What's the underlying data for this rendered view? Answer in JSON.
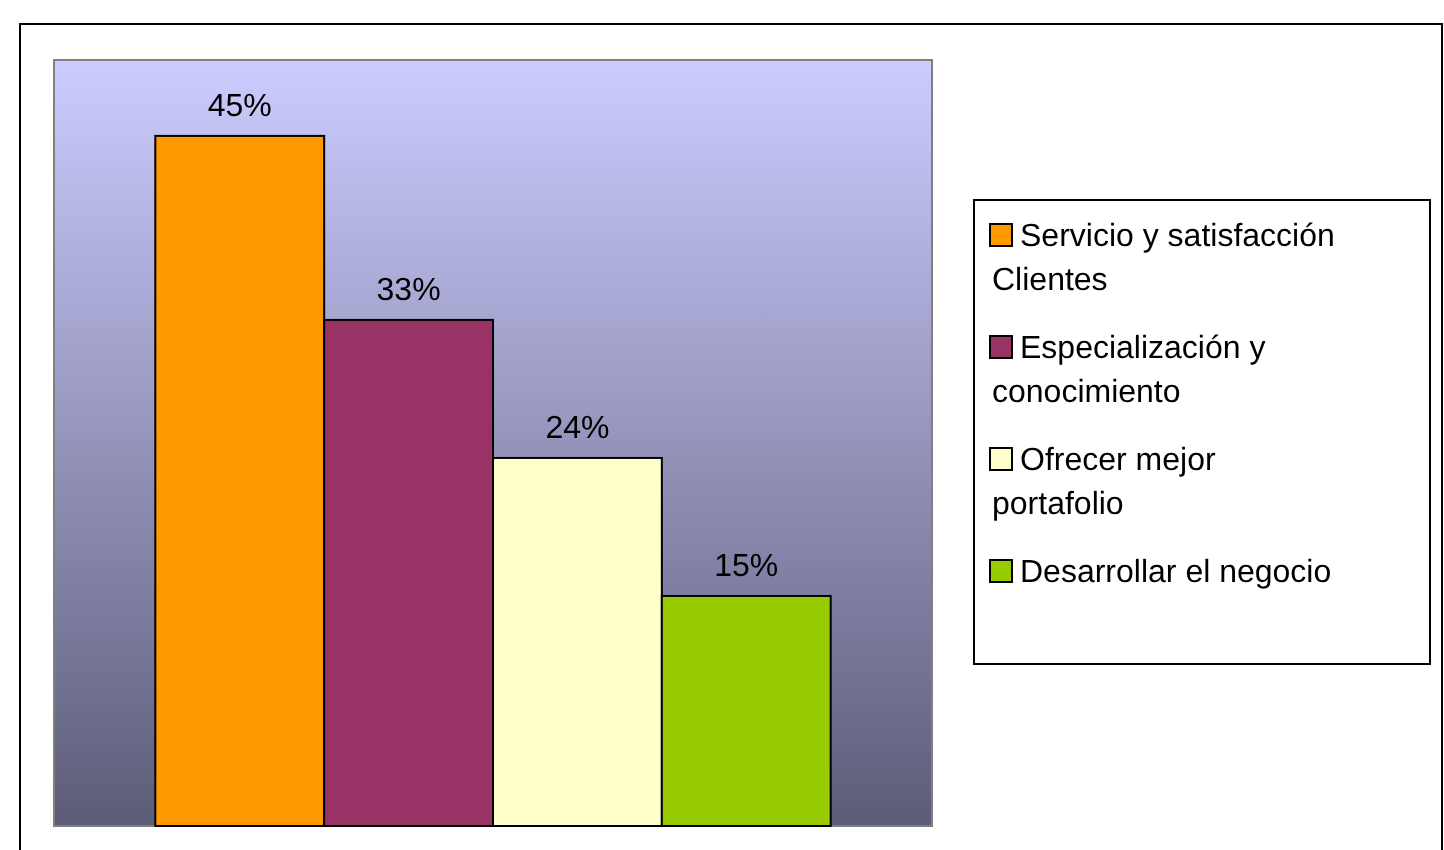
{
  "chart_data": {
    "type": "bar",
    "categories": [
      null
    ],
    "series": [
      {
        "name": "Servicio y satisfacción Clientes",
        "color": "#ff9900",
        "values": [
          45
        ],
        "value_labels": [
          "45%"
        ]
      },
      {
        "name": "Especialización y conocimiento",
        "color": "#993366",
        "values": [
          33
        ],
        "value_labels": [
          "33%"
        ]
      },
      {
        "name": "Ofrecer mejor portafolio",
        "color": "#ffffcc",
        "values": [
          24
        ],
        "value_labels": [
          "24%"
        ]
      },
      {
        "name": "Desarrollar el negocio",
        "color": "#99cc00",
        "values": [
          15
        ],
        "value_labels": [
          "15%"
        ]
      }
    ],
    "legend": "right",
    "grid": false
  }
}
